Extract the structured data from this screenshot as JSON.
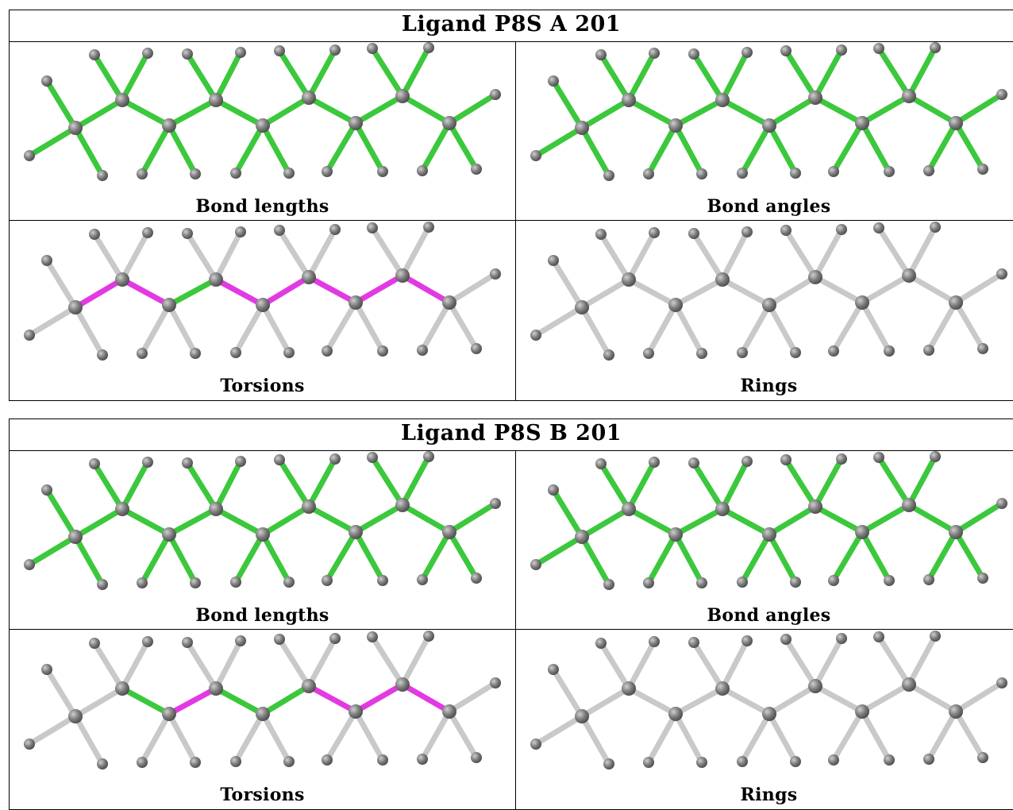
{
  "blocks": [
    {
      "title": "Ligand P8S A 201",
      "panels": [
        {
          "caption": "Bond lengths",
          "mode": "all-green"
        },
        {
          "caption": "Bond angles",
          "mode": "all-green"
        },
        {
          "caption": "Torsions",
          "mode": "torsions",
          "torsion_colors": [
            "#e23ae2",
            "#3cc83c",
            "#e23ae2",
            "#e23ae2",
            "#e23ae2",
            "#e23ae2"
          ]
        },
        {
          "caption": "Rings",
          "mode": "all-grey"
        }
      ]
    },
    {
      "title": "Ligand P8S B 201",
      "panels": [
        {
          "caption": "Bond lengths",
          "mode": "all-green"
        },
        {
          "caption": "Bond angles",
          "mode": "all-green"
        },
        {
          "caption": "Torsions",
          "mode": "torsions",
          "torsion_colors": [
            "#3cc83c",
            "#e23ae2",
            "#3cc83c",
            "#3cc83c",
            "#e23ae2",
            "#e23ae2"
          ]
        },
        {
          "caption": "Rings",
          "mode": "all-grey"
        }
      ]
    }
  ],
  "colors": {
    "green": "#3cc83c",
    "grey": "#c9c9c9",
    "atom": "#7b7b7b",
    "magenta": "#e23ae2"
  }
}
